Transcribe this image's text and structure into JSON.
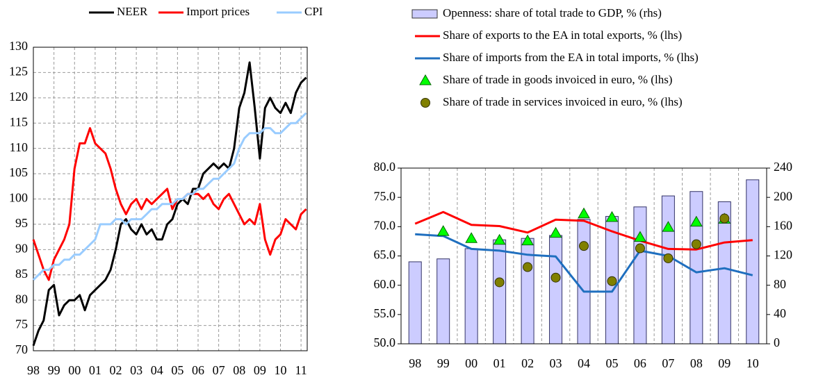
{
  "chart_data": [
    {
      "type": "line",
      "x": [
        98,
        98.25,
        98.5,
        98.75,
        99,
        99.25,
        99.5,
        99.75,
        100,
        100.25,
        100.5,
        100.75,
        101,
        101.25,
        101.5,
        101.75,
        102,
        102.25,
        102.5,
        102.75,
        103,
        103.25,
        103.5,
        103.75,
        104,
        104.25,
        104.5,
        104.75,
        105,
        105.25,
        105.5,
        105.75,
        106,
        106.25,
        106.5,
        106.75,
        107,
        107.25,
        107.5,
        107.75,
        108,
        108.25,
        108.5,
        108.75,
        109,
        109.25,
        109.5,
        109.75,
        110,
        110.25,
        110.5,
        110.75,
        111,
        111.25
      ],
      "series": [
        {
          "name": "NEER",
          "color": "#000000",
          "values": [
            71,
            74,
            76,
            82,
            83,
            77,
            79,
            80,
            80,
            81,
            78,
            81,
            82,
            83,
            84,
            86,
            90,
            95,
            96,
            94,
            93,
            95,
            93,
            94,
            92,
            92,
            95,
            96,
            99,
            100,
            99,
            102,
            102,
            105,
            106,
            107,
            106,
            107,
            106,
            110,
            118,
            121,
            127,
            118,
            108,
            118,
            120,
            118,
            117,
            119,
            117,
            121,
            123,
            124
          ]
        },
        {
          "name": "Import prices",
          "color": "#ff0000",
          "values": [
            92,
            89,
            86,
            84,
            88,
            90,
            92,
            95,
            106,
            111,
            111,
            114,
            111,
            110,
            109,
            106,
            102,
            99,
            97,
            99,
            100,
            98,
            100,
            99,
            100,
            101,
            102,
            98,
            100,
            100,
            101,
            101,
            101,
            100,
            101,
            99,
            98,
            100,
            101,
            99,
            97,
            95,
            96,
            95,
            99,
            92,
            89,
            92,
            93,
            96,
            95,
            94,
            97,
            98
          ]
        },
        {
          "name": "CPI",
          "color": "#99ccff",
          "values": [
            84,
            85,
            86,
            86,
            87,
            87,
            88,
            88,
            89,
            89,
            90,
            91,
            92,
            95,
            95,
            95,
            96,
            96,
            95,
            96,
            96,
            96,
            97,
            98,
            98,
            99,
            99,
            99,
            100,
            100,
            101,
            101,
            102,
            102,
            103,
            104,
            104,
            105,
            106,
            107,
            110,
            112,
            113,
            113,
            113,
            114,
            114,
            113,
            113,
            114,
            115,
            115,
            116,
            117
          ]
        }
      ],
      "xlim": [
        98,
        111.3
      ],
      "xticks": [
        98,
        99,
        {
          "value": 100,
          "label": "00"
        },
        {
          "value": 101,
          "label": "01"
        },
        {
          "value": 102,
          "label": "02"
        },
        {
          "value": 103,
          "label": "03"
        },
        {
          "value": 104,
          "label": "04"
        },
        {
          "value": 105,
          "label": "05"
        },
        {
          "value": 106,
          "label": "06"
        },
        {
          "value": 107,
          "label": "07"
        },
        {
          "value": 108,
          "label": "08"
        },
        {
          "value": 109,
          "label": "09"
        },
        {
          "value": 110,
          "label": "10"
        },
        {
          "value": 111,
          "label": "11"
        }
      ],
      "ylim": [
        70,
        130
      ],
      "yticks": [
        70,
        75,
        80,
        85,
        90,
        95,
        100,
        105,
        110,
        115,
        120,
        125,
        130
      ],
      "grid": "both",
      "legend": "top"
    },
    {
      "type": "combo",
      "categories": [
        "98",
        "99",
        "00",
        "01",
        "02",
        "03",
        "04",
        "05",
        "06",
        "07",
        "08",
        "09",
        "10"
      ],
      "series": [
        {
          "name": "Openness: share of total trade to GDP, % (rhs)",
          "type": "bar",
          "axis": "y2",
          "color": "#ccccff",
          "values": [
            112,
            116,
            130,
            142,
            144,
            148,
            170,
            174,
            187,
            202,
            208,
            194,
            224
          ]
        },
        {
          "name": "Share of exports to the EA in total exports, % (lhs)",
          "type": "line",
          "color": "#ff0000",
          "values": [
            70.5,
            72.5,
            70.3,
            70.1,
            69.0,
            71.2,
            71.0,
            69.2,
            67.6,
            66.2,
            66.1,
            67.3,
            67.7
          ]
        },
        {
          "name": "Share of imports from the EA in total imports, % (lhs)",
          "type": "line",
          "color": "#1f6fbf",
          "values": [
            68.7,
            68.4,
            66.2,
            65.9,
            65.2,
            64.9,
            58.9,
            58.9,
            65.9,
            65.0,
            62.2,
            62.9,
            61.7
          ]
        },
        {
          "name": "Share of trade in goods invoiced in euro, % (lhs)",
          "type": "scatter",
          "marker": "triangle",
          "color": "#00ff00",
          "values": [
            null,
            69.2,
            68.0,
            67.7,
            67.6,
            68.9,
            72.2,
            71.6,
            68.2,
            69.9,
            70.8,
            71.3,
            null
          ]
        },
        {
          "name": "Share of trade in services invoiced in euro, % (lhs)",
          "type": "scatter",
          "marker": "circle",
          "color": "#808000",
          "values": [
            null,
            null,
            null,
            60.5,
            63.1,
            61.3,
            66.7,
            60.7,
            66.3,
            64.6,
            67.0,
            71.4,
            null
          ]
        }
      ],
      "ylim": [
        50,
        80
      ],
      "yticks": [
        {
          "value": 50,
          "label": "50.0"
        },
        {
          "value": 55,
          "label": "55.0"
        },
        {
          "value": 60,
          "label": "60.0"
        },
        {
          "value": 65,
          "label": "65.0"
        },
        {
          "value": 70,
          "label": "70.0"
        },
        {
          "value": 75,
          "label": "75.0"
        },
        {
          "value": 80,
          "label": "80.0"
        }
      ],
      "y2lim": [
        0,
        240
      ],
      "y2ticks": [
        0,
        40,
        80,
        120,
        160,
        200,
        240
      ],
      "grid": "x",
      "legend": "top"
    }
  ]
}
